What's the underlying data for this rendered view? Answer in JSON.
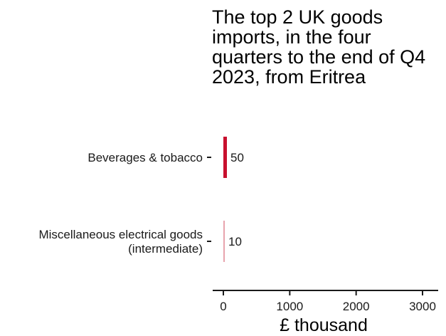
{
  "chart_data": {
    "type": "bar",
    "orientation": "horizontal",
    "title": "The top 2 UK goods imports, in the four quarters to the end of Q4 2023, from Eritrea",
    "categories": [
      [
        "Beverages & tobacco"
      ],
      [
        "Miscellaneous electrical goods",
        "(intermediate)"
      ]
    ],
    "values": [
      50,
      10
    ],
    "data_labels": [
      "50",
      "10"
    ],
    "bar_colors": [
      "#c8102e",
      "#e8a3ad"
    ],
    "xlabel": "£ thousand",
    "ylabel": "",
    "xlim": [
      0,
      3300
    ],
    "xticks": [
      0,
      1000,
      2000,
      3000
    ],
    "xtick_labels": [
      "0",
      "1000",
      "2000",
      "3000"
    ],
    "grid": false,
    "legend": "none"
  }
}
